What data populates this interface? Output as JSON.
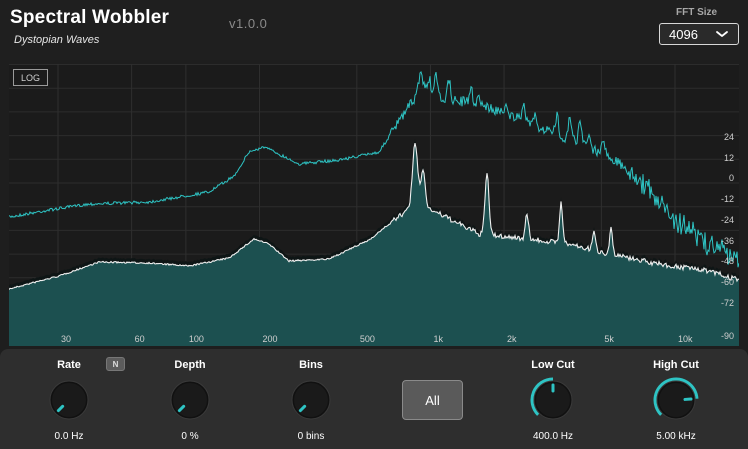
{
  "app": {
    "title": "Spectral Wobbler",
    "subtitle": "Dystopian Waves",
    "version": "v1.0.0"
  },
  "fft": {
    "label": "FFT Size",
    "value": "4096",
    "chevron_icon": "chevron-down-icon"
  },
  "spectrum": {
    "log_label": "LOG",
    "accent_color": "#2ec4c4",
    "fill_color": "#1f5b5b",
    "freq_ticks": [
      {
        "label": "30",
        "hz": 30
      },
      {
        "label": "60",
        "hz": 60
      },
      {
        "label": "100",
        "hz": 100
      },
      {
        "label": "200",
        "hz": 200
      },
      {
        "label": "500",
        "hz": 500
      },
      {
        "label": "1k",
        "hz": 1000
      },
      {
        "label": "2k",
        "hz": 2000
      },
      {
        "label": "5k",
        "hz": 5000
      },
      {
        "label": "10k",
        "hz": 10000
      }
    ],
    "db_ticks": [
      "24",
      "12",
      "0",
      "-12",
      "-24",
      "-36",
      "-48",
      "-60",
      "-72",
      "-90"
    ]
  },
  "controls": {
    "rate": {
      "label": "Rate",
      "value": "0.0 Hz",
      "level": 0.0
    },
    "rate_badge": "N",
    "depth": {
      "label": "Depth",
      "value": "0 %",
      "level": 0.0
    },
    "bins": {
      "label": "Bins",
      "value": "0 bins",
      "level": 0.0
    },
    "all_button": "All",
    "low_cut": {
      "label": "Low Cut",
      "value": "400.0 Hz",
      "level": 0.5
    },
    "high_cut": {
      "label": "High Cut",
      "value": "5.00 kHz",
      "level": 0.82
    }
  }
}
